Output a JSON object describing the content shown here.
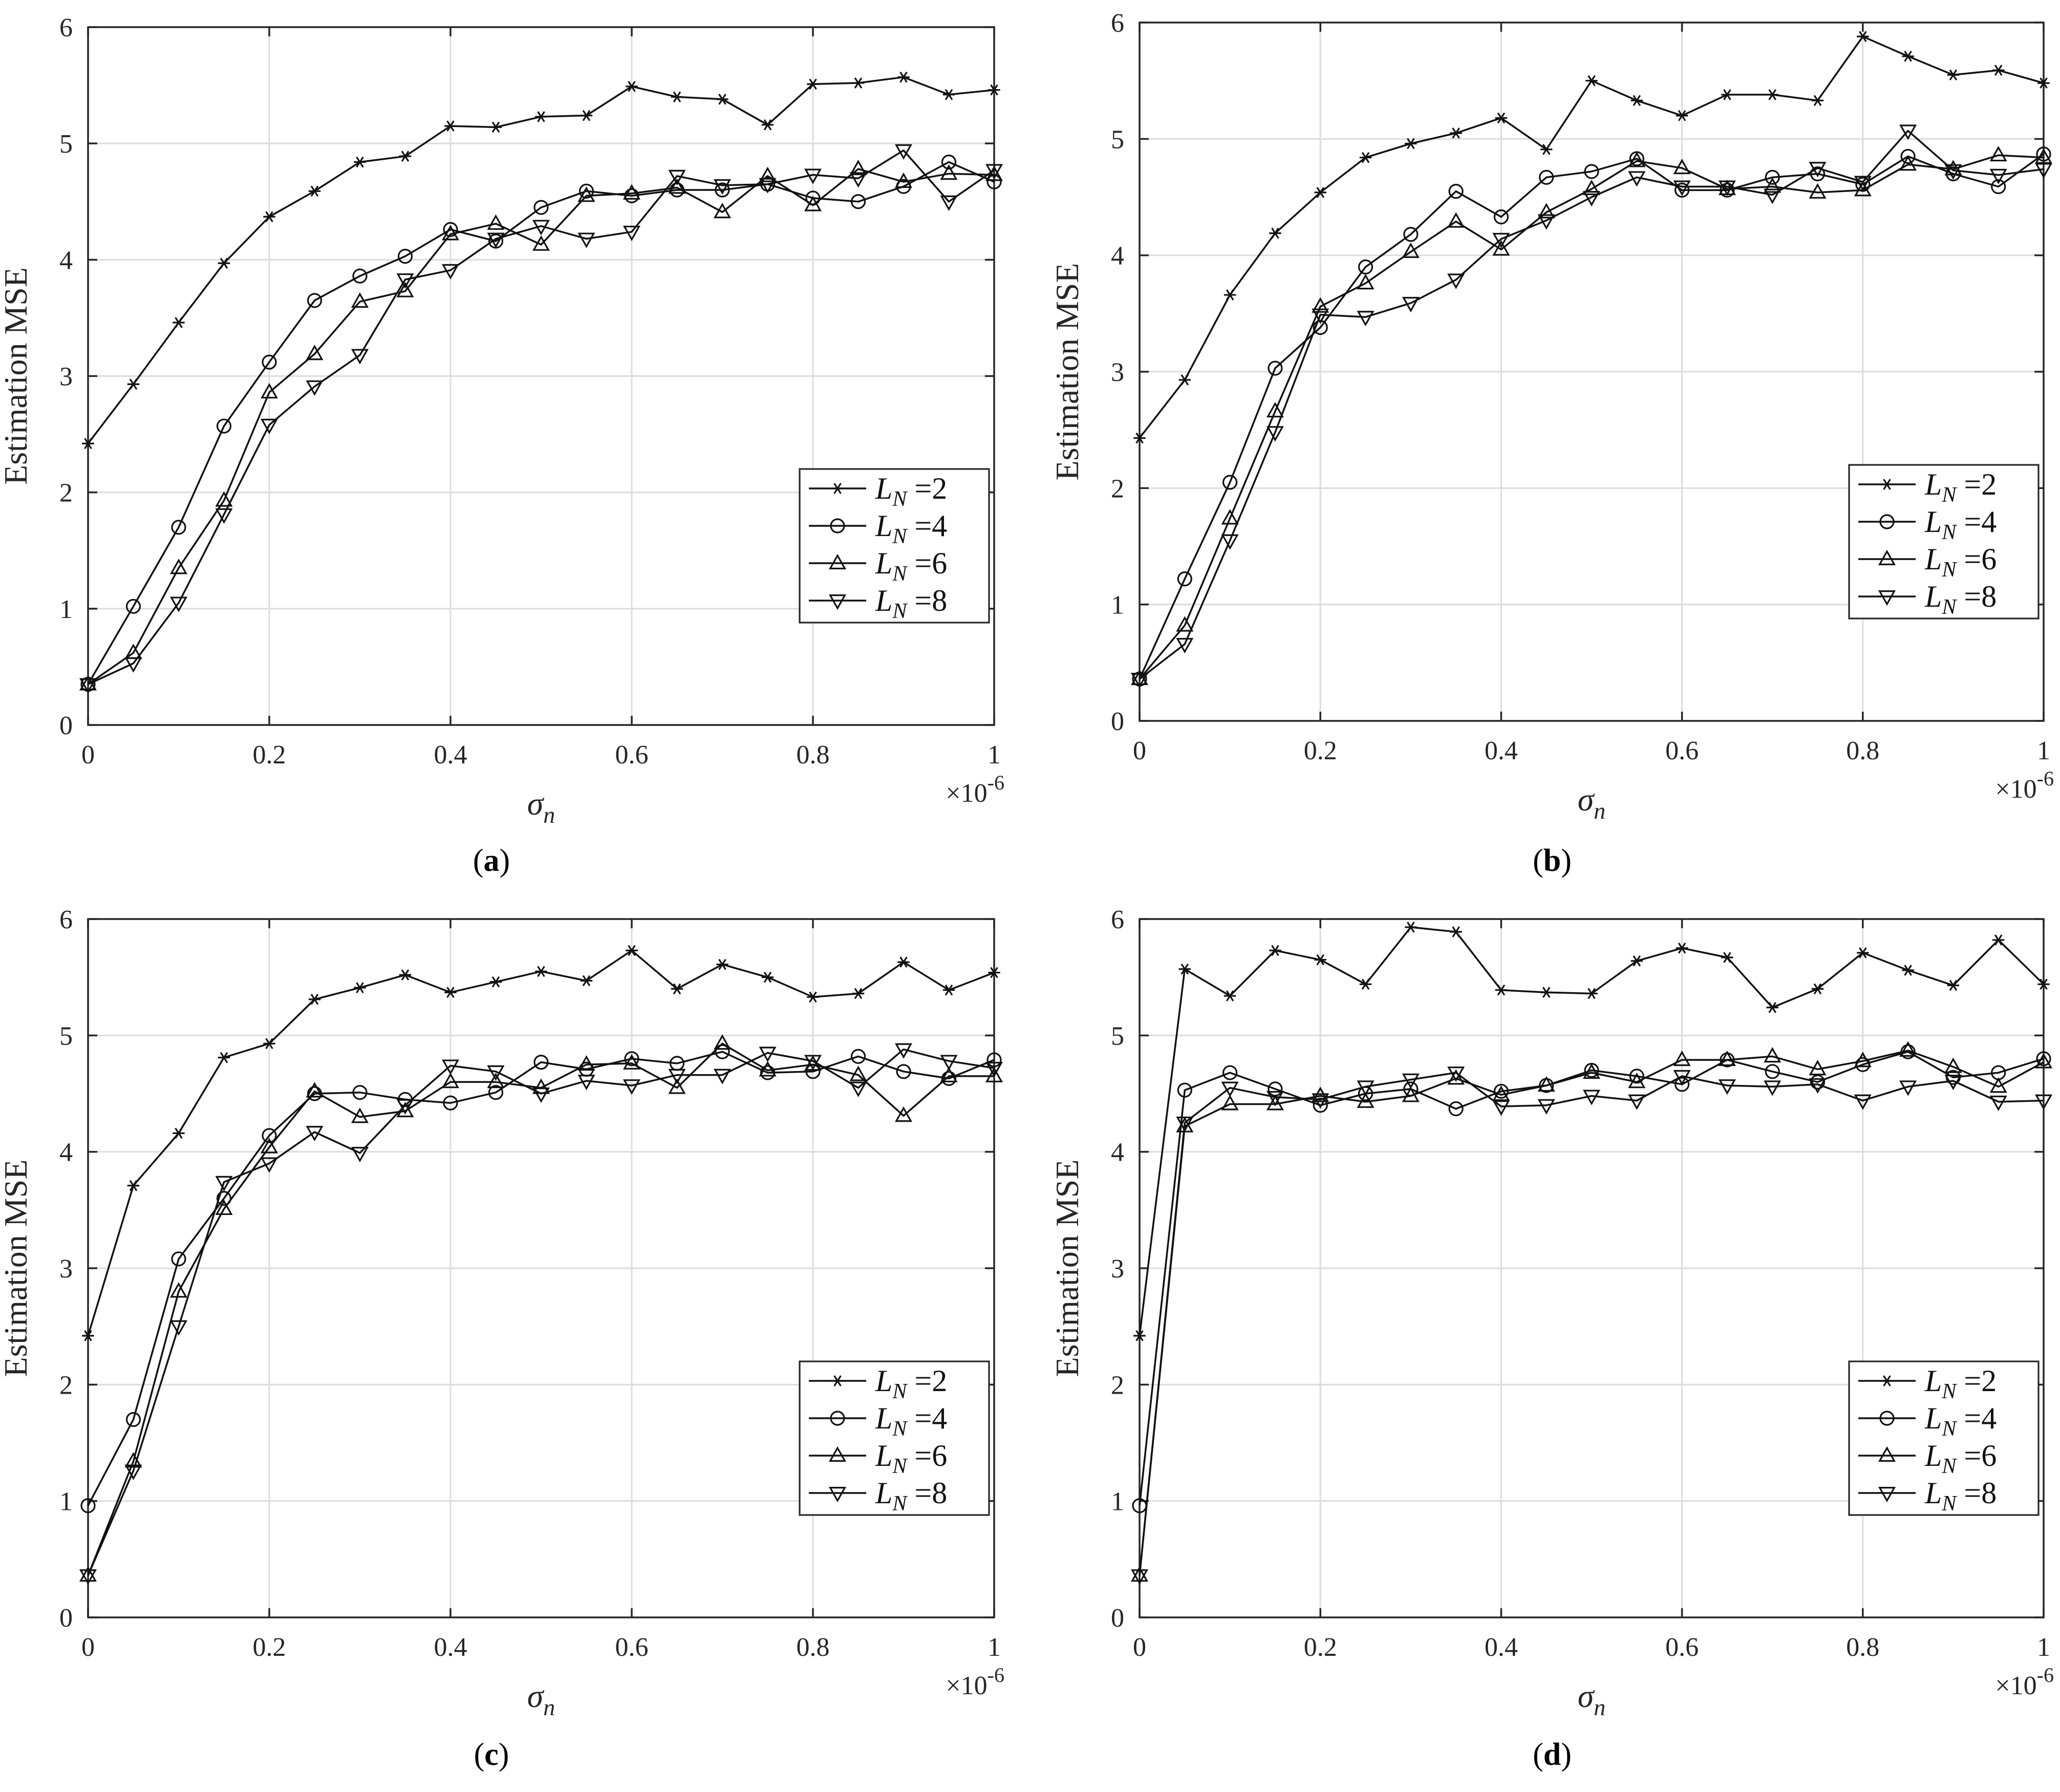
{
  "figure_captions": [
    "(a)",
    "(b)",
    "(c)",
    "(d)"
  ],
  "chart_data": [
    {
      "type": "line",
      "caption": "(a)",
      "xlabel": "σ_n",
      "ylabel": "Estimation MSE",
      "x_scale_note": "×10^-6",
      "xlim": [
        0,
        1
      ],
      "ylim": [
        0,
        6
      ],
      "xticks": [
        "0",
        "0.2",
        "0.4",
        "0.6",
        "0.8",
        "1"
      ],
      "yticks": [
        "0",
        "1",
        "2",
        "3",
        "4",
        "5",
        "6"
      ],
      "grid": true,
      "legend_position": "lower-right",
      "x": [
        0,
        0.05,
        0.1,
        0.15,
        0.2,
        0.25,
        0.3,
        0.35,
        0.4,
        0.45,
        0.5,
        0.55,
        0.6,
        0.65,
        0.7,
        0.75,
        0.8,
        0.85,
        0.9,
        0.95,
        1
      ],
      "series": [
        {
          "name": "L_N =2",
          "marker": "asterisk",
          "values": [
            2.42,
            2.93,
            3.46,
            3.97,
            4.37,
            4.59,
            4.84,
            4.89,
            5.15,
            5.14,
            5.23,
            5.24,
            5.49,
            5.4,
            5.38,
            5.16,
            5.51,
            5.52,
            5.57,
            5.42,
            5.46
          ]
        },
        {
          "name": "L_N =4",
          "marker": "circle",
          "values": [
            0.35,
            1.02,
            1.7,
            2.57,
            3.12,
            3.65,
            3.86,
            4.03,
            4.26,
            4.16,
            4.45,
            4.59,
            4.55,
            4.6,
            4.6,
            4.65,
            4.53,
            4.5,
            4.63,
            4.84,
            4.67
          ]
        },
        {
          "name": "L_N =6",
          "marker": "triangle-up",
          "values": [
            0.35,
            0.62,
            1.35,
            1.93,
            2.86,
            3.19,
            3.64,
            3.73,
            4.22,
            4.31,
            4.13,
            4.55,
            4.57,
            4.62,
            4.41,
            4.72,
            4.47,
            4.78,
            4.67,
            4.74,
            4.73
          ]
        },
        {
          "name": "L_N =8",
          "marker": "triangle-down",
          "values": [
            0.35,
            0.53,
            1.05,
            1.81,
            2.58,
            2.91,
            3.18,
            3.83,
            3.91,
            4.18,
            4.29,
            4.18,
            4.24,
            4.72,
            4.64,
            4.65,
            4.73,
            4.7,
            4.94,
            4.5,
            4.77
          ]
        }
      ]
    },
    {
      "type": "line",
      "caption": "(b)",
      "xlabel": "σ_n",
      "ylabel": "Estimation MSE",
      "x_scale_note": "×10^-6",
      "xlim": [
        0,
        1
      ],
      "ylim": [
        0,
        6
      ],
      "xticks": [
        "0",
        "0.2",
        "0.4",
        "0.6",
        "0.8",
        "1"
      ],
      "yticks": [
        "0",
        "1",
        "2",
        "3",
        "4",
        "5",
        "6"
      ],
      "grid": true,
      "legend_position": "lower-right",
      "x": [
        0,
        0.05,
        0.1,
        0.15,
        0.2,
        0.25,
        0.3,
        0.35,
        0.4,
        0.45,
        0.5,
        0.55,
        0.6,
        0.65,
        0.7,
        0.75,
        0.8,
        0.85,
        0.9,
        0.95,
        1
      ],
      "series": [
        {
          "name": "L_N =2",
          "marker": "asterisk",
          "values": [
            2.43,
            2.93,
            3.66,
            4.19,
            4.54,
            4.84,
            4.96,
            5.05,
            5.18,
            4.91,
            5.5,
            5.33,
            5.2,
            5.38,
            5.38,
            5.33,
            5.88,
            5.71,
            5.55,
            5.59,
            5.48
          ]
        },
        {
          "name": "L_N =4",
          "marker": "circle",
          "values": [
            0.36,
            1.22,
            2.05,
            3.03,
            3.38,
            3.9,
            4.18,
            4.55,
            4.33,
            4.67,
            4.72,
            4.83,
            4.56,
            4.56,
            4.67,
            4.7,
            4.61,
            4.85,
            4.7,
            4.59,
            4.87
          ]
        },
        {
          "name": "L_N =6",
          "marker": "triangle-up",
          "values": [
            0.36,
            0.82,
            1.74,
            2.66,
            3.56,
            3.76,
            4.03,
            4.29,
            4.05,
            4.37,
            4.57,
            4.81,
            4.75,
            4.57,
            4.59,
            4.54,
            4.56,
            4.78,
            4.74,
            4.86,
            4.84
          ]
        },
        {
          "name": "L_N =8",
          "marker": "triangle-down",
          "values": [
            0.36,
            0.66,
            1.55,
            2.48,
            3.49,
            3.47,
            3.59,
            3.79,
            4.14,
            4.3,
            4.5,
            4.67,
            4.59,
            4.59,
            4.52,
            4.75,
            4.63,
            5.07,
            4.73,
            4.69,
            4.74
          ]
        }
      ]
    },
    {
      "type": "line",
      "caption": "(c)",
      "xlabel": "σ_n",
      "ylabel": "Estimation MSE",
      "x_scale_note": "×10^-6",
      "xlim": [
        0,
        1
      ],
      "ylim": [
        0,
        6
      ],
      "xticks": [
        "0",
        "0.2",
        "0.4",
        "0.6",
        "0.8",
        "1"
      ],
      "yticks": [
        "0",
        "1",
        "2",
        "3",
        "4",
        "5",
        "6"
      ],
      "grid": true,
      "legend_position": "lower-right",
      "x": [
        0,
        0.05,
        0.1,
        0.15,
        0.2,
        0.25,
        0.3,
        0.35,
        0.4,
        0.45,
        0.5,
        0.55,
        0.6,
        0.65,
        0.7,
        0.75,
        0.8,
        0.85,
        0.9,
        0.95,
        1
      ],
      "series": [
        {
          "name": "L_N =2",
          "marker": "asterisk",
          "values": [
            2.42,
            3.71,
            4.16,
            4.81,
            4.93,
            5.31,
            5.41,
            5.52,
            5.37,
            5.46,
            5.55,
            5.47,
            5.73,
            5.4,
            5.61,
            5.5,
            5.33,
            5.36,
            5.63,
            5.39,
            5.54
          ]
        },
        {
          "name": "L_N =4",
          "marker": "circle",
          "values": [
            0.96,
            1.7,
            3.08,
            3.6,
            4.14,
            4.5,
            4.51,
            4.45,
            4.42,
            4.51,
            4.77,
            4.71,
            4.8,
            4.76,
            4.86,
            4.68,
            4.69,
            4.82,
            4.69,
            4.63,
            4.79
          ]
        },
        {
          "name": "L_N =6",
          "marker": "triangle-up",
          "values": [
            0.36,
            1.34,
            2.8,
            3.51,
            4.04,
            4.52,
            4.3,
            4.35,
            4.6,
            4.6,
            4.55,
            4.75,
            4.76,
            4.55,
            4.93,
            4.7,
            4.75,
            4.66,
            4.31,
            4.65,
            4.65
          ]
        },
        {
          "name": "L_N =8",
          "marker": "triangle-down",
          "values": [
            0.36,
            1.26,
            2.5,
            3.74,
            3.9,
            4.17,
            3.99,
            4.4,
            4.74,
            4.69,
            4.5,
            4.61,
            4.57,
            4.66,
            4.66,
            4.85,
            4.78,
            4.55,
            4.88,
            4.78,
            4.72
          ]
        }
      ]
    },
    {
      "type": "line",
      "caption": "(d)",
      "xlabel": "σ_n",
      "ylabel": "Estimation MSE",
      "x_scale_note": "×10^-6",
      "xlim": [
        0,
        1
      ],
      "ylim": [
        0,
        6
      ],
      "xticks": [
        "0",
        "0.2",
        "0.4",
        "0.6",
        "0.8",
        "1"
      ],
      "yticks": [
        "0",
        "1",
        "2",
        "3",
        "4",
        "5",
        "6"
      ],
      "grid": true,
      "legend_position": "lower-right",
      "x": [
        0,
        0.05,
        0.1,
        0.15,
        0.2,
        0.25,
        0.3,
        0.35,
        0.4,
        0.45,
        0.5,
        0.55,
        0.6,
        0.65,
        0.7,
        0.75,
        0.8,
        0.85,
        0.9,
        0.95,
        1
      ],
      "series": [
        {
          "name": "L_N =2",
          "marker": "asterisk",
          "values": [
            2.42,
            5.57,
            5.34,
            5.73,
            5.65,
            5.44,
            5.93,
            5.89,
            5.39,
            5.37,
            5.36,
            5.64,
            5.75,
            5.67,
            5.24,
            5.4,
            5.71,
            5.56,
            5.43,
            5.82,
            5.44
          ]
        },
        {
          "name": "L_N =4",
          "marker": "circle",
          "values": [
            0.96,
            4.53,
            4.68,
            4.54,
            4.4,
            4.5,
            4.54,
            4.37,
            4.52,
            4.57,
            4.7,
            4.65,
            4.58,
            4.79,
            4.69,
            4.6,
            4.75,
            4.86,
            4.64,
            4.68,
            4.8
          ]
        },
        {
          "name": "L_N =6",
          "marker": "triangle-up",
          "values": [
            0.36,
            4.22,
            4.41,
            4.41,
            4.48,
            4.43,
            4.48,
            4.63,
            4.49,
            4.57,
            4.68,
            4.6,
            4.79,
            4.79,
            4.82,
            4.71,
            4.78,
            4.87,
            4.73,
            4.56,
            4.77
          ]
        },
        {
          "name": "L_N =8",
          "marker": "triangle-down",
          "values": [
            0.36,
            4.25,
            4.55,
            4.47,
            4.45,
            4.56,
            4.62,
            4.68,
            4.39,
            4.4,
            4.48,
            4.44,
            4.65,
            4.57,
            4.56,
            4.58,
            4.44,
            4.56,
            4.61,
            4.43,
            4.44
          ]
        }
      ]
    }
  ]
}
